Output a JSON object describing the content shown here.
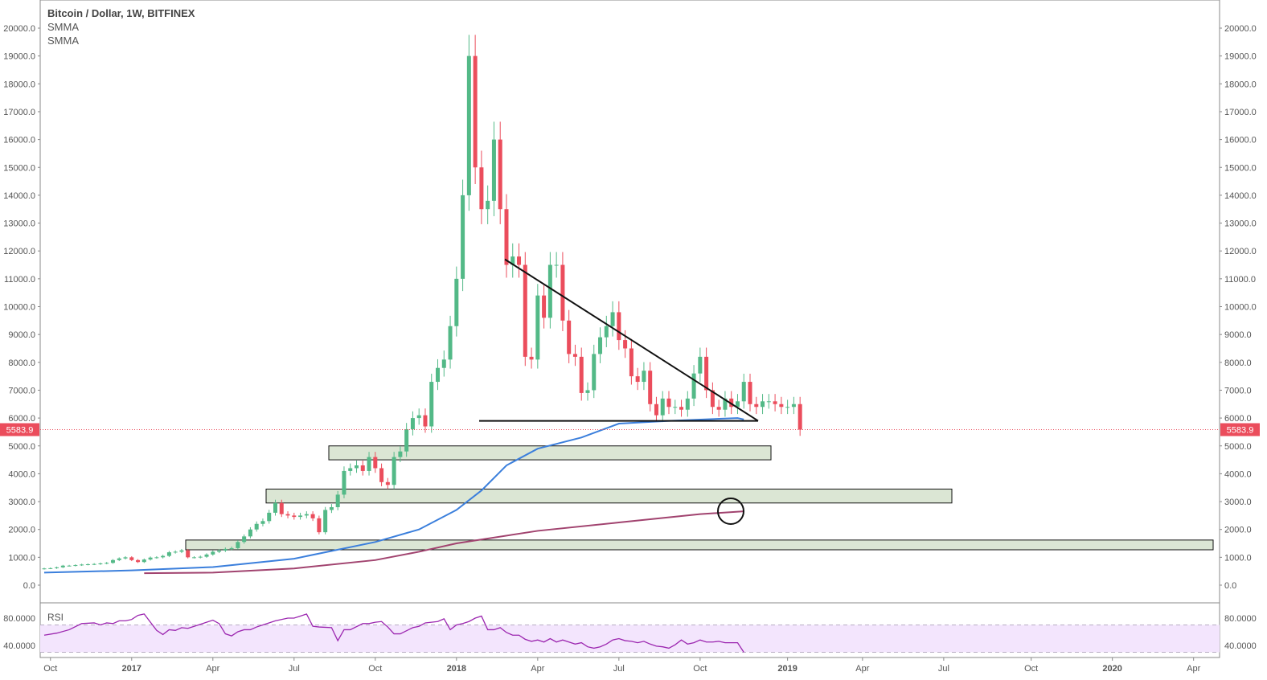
{
  "chart_data": {
    "type": "candlestick",
    "title": "Bitcoin / Dollar, 1W, BITFINEX",
    "indicators": [
      "SMMA",
      "SMMA"
    ],
    "price_axis_ticks": [
      "0.0",
      "1000.0",
      "2000.0",
      "3000.0",
      "4000.0",
      "5000.0",
      "6000.0",
      "7000.0",
      "8000.0",
      "9000.0",
      "10000.0",
      "11000.0",
      "12000.0",
      "13000.0",
      "14000.0",
      "15000.0",
      "16000.0",
      "17000.0",
      "18000.0",
      "19000.0",
      "20000.0"
    ],
    "ylim": [
      -300,
      20400
    ],
    "last_price": "5583.9",
    "x_ticks": [
      {
        "label": "Oct",
        "week": 1,
        "bold": false
      },
      {
        "label": "2017",
        "week": 14,
        "bold": true
      },
      {
        "label": "Apr",
        "week": 27,
        "bold": false
      },
      {
        "label": "Jul",
        "week": 40,
        "bold": false
      },
      {
        "label": "Oct",
        "week": 53,
        "bold": false
      },
      {
        "label": "2018",
        "week": 66,
        "bold": true
      },
      {
        "label": "Apr",
        "week": 79,
        "bold": false
      },
      {
        "label": "Jul",
        "week": 92,
        "bold": false
      },
      {
        "label": "Oct",
        "week": 105,
        "bold": false
      },
      {
        "label": "2019",
        "week": 119,
        "bold": true
      },
      {
        "label": "Apr",
        "week": 131,
        "bold": false
      },
      {
        "label": "Jul",
        "week": 144,
        "bold": false
      },
      {
        "label": "Oct",
        "week": 158,
        "bold": false
      },
      {
        "label": "2020",
        "week": 171,
        "bold": true
      },
      {
        "label": "Apr",
        "week": 184,
        "bold": false
      }
    ],
    "weekly_closes": [
      600,
      610,
      640,
      700,
      700,
      720,
      740,
      750,
      760,
      780,
      800,
      900,
      960,
      1000,
      900,
      830,
      920,
      990,
      1000,
      1050,
      1180,
      1200,
      1250,
      1000,
      1000,
      1020,
      1100,
      1200,
      1240,
      1300,
      1330,
      1550,
      1750,
      2000,
      2200,
      2300,
      2600,
      2950,
      2550,
      2500,
      2450,
      2500,
      2550,
      2400,
      1900,
      2700,
      2800,
      3250,
      4100,
      4200,
      4300,
      4100,
      4600,
      4200,
      3700,
      3600,
      4600,
      4800,
      5600,
      6000,
      6100,
      5700,
      7300,
      7800,
      8100,
      9300,
      11000,
      14000,
      19000,
      15000,
      13500,
      13800,
      16000,
      13500,
      11500,
      11800,
      11500,
      8200,
      8100,
      10400,
      9600,
      11500,
      11500,
      9500,
      8300,
      8200,
      6900,
      7000,
      8300,
      8900,
      9300,
      9800,
      8800,
      8500,
      7500,
      7300,
      7700,
      6500,
      6100,
      6700,
      6400,
      6400,
      6300,
      6700,
      7600,
      8200,
      7000,
      6400,
      6300,
      6700,
      6400,
      6600,
      7300,
      6500,
      6400,
      6600,
      6600,
      6500,
      6400,
      6400,
      6500,
      5584
    ],
    "smma_fast": [
      [
        0,
        450
      ],
      [
        14,
        530
      ],
      [
        27,
        650
      ],
      [
        40,
        950
      ],
      [
        53,
        1550
      ],
      [
        60,
        2000
      ],
      [
        66,
        2700
      ],
      [
        70,
        3400
      ],
      [
        74,
        4300
      ],
      [
        79,
        4900
      ],
      [
        86,
        5300
      ],
      [
        92,
        5800
      ],
      [
        100,
        5900
      ],
      [
        111,
        6000
      ],
      [
        112,
        5950
      ]
    ],
    "smma_slow": [
      [
        16,
        430
      ],
      [
        27,
        450
      ],
      [
        40,
        600
      ],
      [
        53,
        900
      ],
      [
        60,
        1200
      ],
      [
        66,
        1500
      ],
      [
        79,
        1950
      ],
      [
        92,
        2250
      ],
      [
        105,
        2550
      ],
      [
        112,
        2650
      ]
    ],
    "rsi": {
      "label": "RSI",
      "ticks": [
        "80.0000",
        "40.0000"
      ],
      "band": [
        30,
        70
      ],
      "values": [
        [
          0,
          55
        ],
        [
          2,
          58
        ],
        [
          4,
          63
        ],
        [
          6,
          72
        ],
        [
          8,
          73
        ],
        [
          9,
          70
        ],
        [
          10,
          73
        ],
        [
          11,
          72
        ],
        [
          12,
          76
        ],
        [
          13,
          76
        ],
        [
          14,
          78
        ],
        [
          15,
          84
        ],
        [
          16,
          86
        ],
        [
          18,
          62
        ],
        [
          19,
          56
        ],
        [
          20,
          63
        ],
        [
          21,
          62
        ],
        [
          22,
          66
        ],
        [
          23,
          65
        ],
        [
          24,
          68
        ],
        [
          26,
          74
        ],
        [
          27,
          77
        ],
        [
          28,
          72
        ],
        [
          29,
          57
        ],
        [
          30,
          54
        ],
        [
          31,
          60
        ],
        [
          32,
          63
        ],
        [
          33,
          63
        ],
        [
          34,
          67
        ],
        [
          35,
          70
        ],
        [
          37,
          76
        ],
        [
          39,
          80
        ],
        [
          40,
          80
        ],
        [
          41,
          83
        ],
        [
          42,
          86
        ],
        [
          43,
          68
        ],
        [
          44,
          67
        ],
        [
          46,
          66
        ],
        [
          47,
          47
        ],
        [
          48,
          63
        ],
        [
          49,
          63
        ],
        [
          51,
          72
        ],
        [
          52,
          72
        ],
        [
          53,
          74
        ],
        [
          54,
          75
        ],
        [
          55,
          67
        ],
        [
          56,
          57
        ],
        [
          57,
          57
        ],
        [
          59,
          66
        ],
        [
          60,
          68
        ],
        [
          61,
          73
        ],
        [
          62,
          74
        ],
        [
          63,
          75
        ],
        [
          64,
          79
        ],
        [
          65,
          63
        ],
        [
          66,
          70
        ],
        [
          67,
          72
        ],
        [
          68,
          75
        ],
        [
          69,
          80
        ],
        [
          70,
          83
        ],
        [
          71,
          63
        ],
        [
          72,
          63
        ],
        [
          73,
          66
        ],
        [
          74,
          59
        ],
        [
          75,
          55
        ],
        [
          76,
          55
        ],
        [
          77,
          49
        ],
        [
          78,
          46
        ],
        [
          79,
          48
        ],
        [
          80,
          45
        ],
        [
          81,
          50
        ],
        [
          82,
          45
        ],
        [
          83,
          48
        ],
        [
          84,
          45
        ],
        [
          85,
          42
        ],
        [
          86,
          44
        ],
        [
          87,
          38
        ],
        [
          88,
          36
        ],
        [
          89,
          38
        ],
        [
          90,
          42
        ],
        [
          91,
          48
        ],
        [
          92,
          50
        ],
        [
          93,
          47
        ],
        [
          94,
          46
        ],
        [
          95,
          44
        ],
        [
          96,
          46
        ],
        [
          97,
          42
        ],
        [
          98,
          39
        ],
        [
          99,
          38
        ],
        [
          100,
          36
        ],
        [
          101,
          41
        ],
        [
          102,
          48
        ],
        [
          103,
          42
        ],
        [
          104,
          44
        ],
        [
          105,
          48
        ],
        [
          106,
          45
        ],
        [
          107,
          45
        ],
        [
          108,
          46
        ],
        [
          109,
          44
        ],
        [
          110,
          44
        ],
        [
          111,
          44
        ],
        [
          112,
          30
        ]
      ]
    },
    "annotations": {
      "support_zones": [
        [
          4500,
          5000
        ],
        [
          2950,
          3450
        ],
        [
          1270,
          1620
        ]
      ],
      "descending_triangle": {
        "top": 11700,
        "base": 5900
      }
    }
  }
}
